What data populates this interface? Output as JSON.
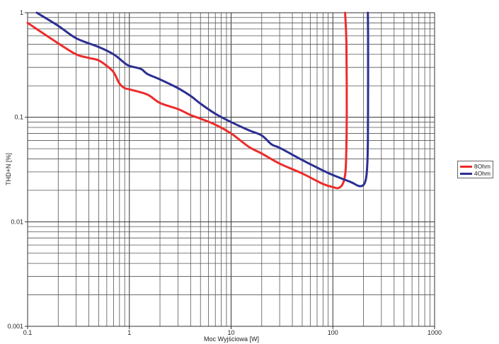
{
  "chart_data": {
    "type": "line",
    "title": "",
    "xlabel": "Moc Wyjściowa [W]",
    "ylabel": "THD+N [%]",
    "xscale": "log",
    "yscale": "log",
    "xlim": [
      0.1,
      1000
    ],
    "ylim": [
      0.001,
      1
    ],
    "xticks": [
      "0.1",
      "1",
      "10",
      "100",
      "1000"
    ],
    "yticks": [
      "0.001",
      "0.01",
      "0.1",
      "1"
    ],
    "grid": true,
    "legend": "right",
    "series": [
      {
        "name": "8Ohm",
        "color": "#ee2b2b",
        "points": [
          [
            0.1,
            0.8
          ],
          [
            0.2,
            0.51
          ],
          [
            0.3,
            0.4
          ],
          [
            0.4,
            0.37
          ],
          [
            0.5,
            0.35
          ],
          [
            0.6,
            0.31
          ],
          [
            0.7,
            0.27
          ],
          [
            0.8,
            0.21
          ],
          [
            0.9,
            0.19
          ],
          [
            1,
            0.185
          ],
          [
            1.5,
            0.165
          ],
          [
            2,
            0.137
          ],
          [
            3,
            0.12
          ],
          [
            4,
            0.105
          ],
          [
            5,
            0.097
          ],
          [
            7,
            0.085
          ],
          [
            10,
            0.07
          ],
          [
            15,
            0.052
          ],
          [
            20,
            0.045
          ],
          [
            30,
            0.036
          ],
          [
            50,
            0.029
          ],
          [
            80,
            0.023
          ],
          [
            100,
            0.0215
          ],
          [
            113,
            0.021
          ],
          [
            125,
            0.023
          ],
          [
            132,
            0.028
          ],
          [
            135,
            0.04
          ],
          [
            137,
            0.1
          ],
          [
            136,
            0.5
          ],
          [
            132,
            1
          ]
        ]
      },
      {
        "name": "4Ohm",
        "color": "#2b2f92",
        "points": [
          [
            0.123,
            1
          ],
          [
            0.2,
            0.75
          ],
          [
            0.3,
            0.57
          ],
          [
            0.5,
            0.47
          ],
          [
            0.7,
            0.4
          ],
          [
            0.9,
            0.33
          ],
          [
            1,
            0.31
          ],
          [
            1.3,
            0.29
          ],
          [
            1.5,
            0.26
          ],
          [
            2,
            0.23
          ],
          [
            3,
            0.19
          ],
          [
            4,
            0.16
          ],
          [
            5,
            0.135
          ],
          [
            7,
            0.108
          ],
          [
            10,
            0.09
          ],
          [
            15,
            0.075
          ],
          [
            20,
            0.067
          ],
          [
            25,
            0.055
          ],
          [
            30,
            0.051
          ],
          [
            50,
            0.039
          ],
          [
            70,
            0.033
          ],
          [
            100,
            0.028
          ],
          [
            150,
            0.024
          ],
          [
            180,
            0.022
          ],
          [
            200,
            0.0225
          ],
          [
            212,
            0.026
          ],
          [
            218,
            0.035
          ],
          [
            221,
            0.06
          ],
          [
            222,
            0.2
          ],
          [
            222,
            0.6
          ],
          [
            221,
            1
          ]
        ]
      }
    ]
  }
}
